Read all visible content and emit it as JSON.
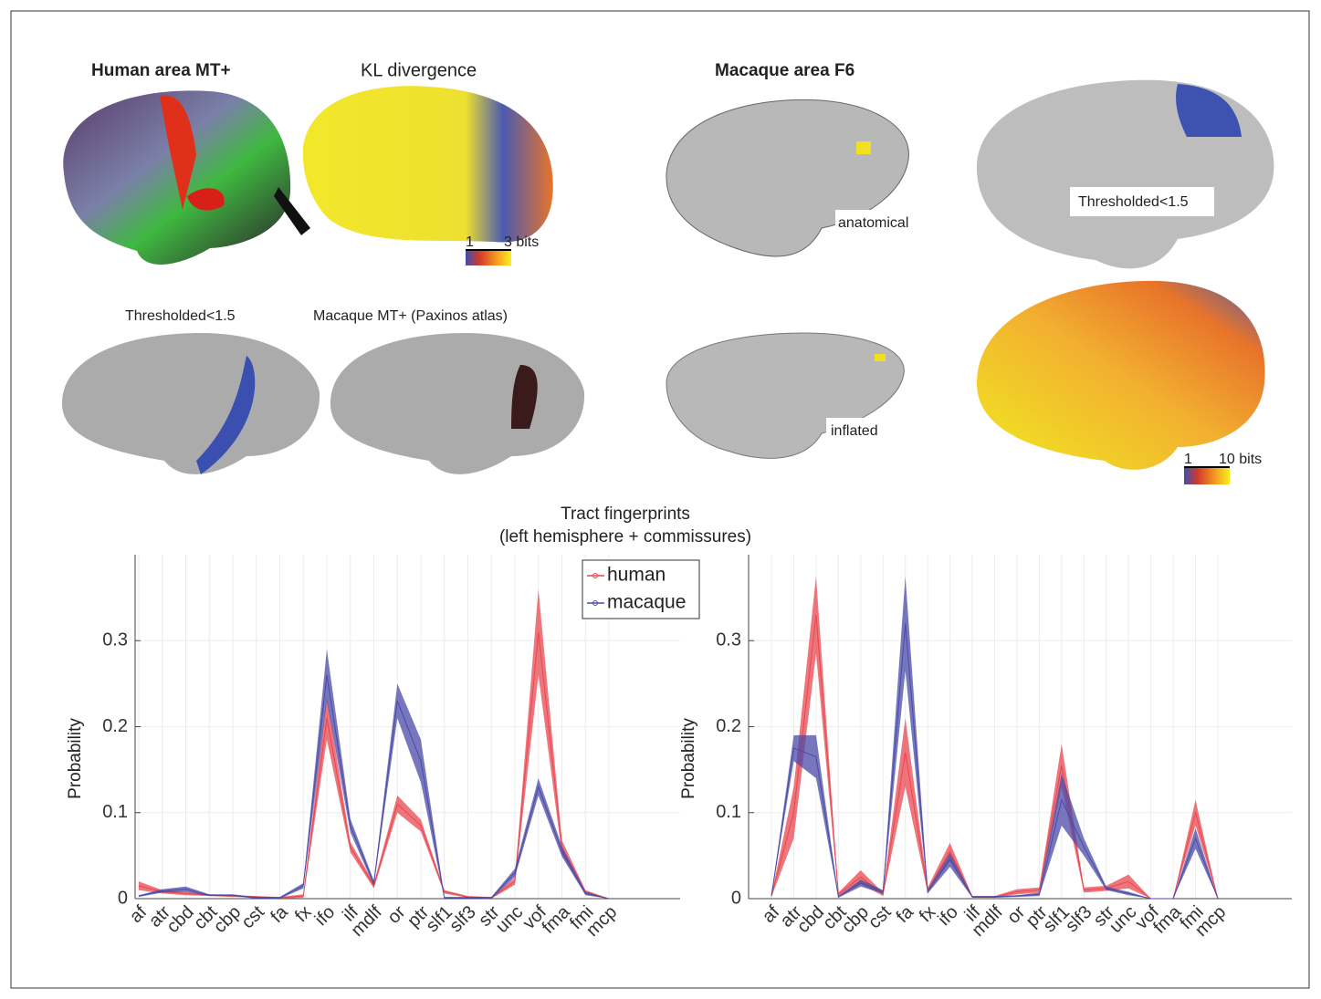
{
  "panels": [
    "Human area MT+",
    "KL divergence",
    "1",
    "3 bits",
    "Macaque area F6",
    "anatomical",
    "Thresholded<1.5",
    "Thresholded<1.5",
    "Macaque MT+ (Paxinos atlas)",
    "inflated",
    "1",
    "10 bits"
  ],
  "chart_data": [
    {
      "type": "line",
      "title": "Tract fingerprints",
      "subtitle": "(left hemisphere + commissures)",
      "ylabel": "Probability",
      "categories": [
        "af",
        "atr",
        "cbd",
        "cbt",
        "cbp",
        "cst",
        "fa",
        "fx",
        "ifo",
        "ilf",
        "mdlf",
        "or",
        "ptr",
        "slf1",
        "slf3",
        "str",
        "unc",
        "vof",
        "fma",
        "fmi",
        "mcp"
      ],
      "ylim": [
        0,
        0.4
      ],
      "yticks": [
        0,
        0.1,
        0.2,
        0.3
      ],
      "grid": true,
      "legend": "top",
      "series": [
        {
          "name": "human",
          "color": "#e8474f",
          "values": [
            0.015,
            0.008,
            0.006,
            0.004,
            0.003,
            0.002,
            0.001,
            0.003,
            0.21,
            0.06,
            0.015,
            0.11,
            0.085,
            0.008,
            0.002,
            0.001,
            0.02,
            0.31,
            0.06,
            0.008,
            0
          ],
          "errors": [
            0.005,
            0.002,
            0.002,
            0.001,
            0.001,
            0.001,
            0.001,
            0.002,
            0.025,
            0.006,
            0.003,
            0.01,
            0.007,
            0.002,
            0.001,
            0.001,
            0.004,
            0.05,
            0.008,
            0.002,
            0
          ]
        },
        {
          "name": "macaque",
          "color": "#4a4aa8",
          "values": [
            0.003,
            0.009,
            0.011,
            0.004,
            0.004,
            0.001,
            0.001,
            0.015,
            0.26,
            0.085,
            0.018,
            0.23,
            0.16,
            0.001,
            0.001,
            0.001,
            0.03,
            0.13,
            0.055,
            0.006,
            0
          ],
          "errors": [
            0.001,
            0.002,
            0.003,
            0.001,
            0.001,
            0.001,
            0.001,
            0.003,
            0.03,
            0.008,
            0.003,
            0.02,
            0.025,
            0.001,
            0.001,
            0.001,
            0.005,
            0.01,
            0.006,
            0.002,
            0
          ]
        }
      ]
    },
    {
      "type": "line",
      "ylabel": "Probability",
      "categories": [
        "af",
        "atr",
        "cbd",
        "cbt",
        "cbp",
        "cst",
        "fa",
        "fx",
        "ifo",
        "ilf",
        "mdlf",
        "or",
        "ptr",
        "slf1",
        "slf3",
        "str",
        "unc",
        "vof",
        "fma",
        "fmi",
        "mcp"
      ],
      "ylim": [
        0,
        0.4
      ],
      "yticks": [
        0,
        0.1,
        0.2,
        0.3
      ],
      "grid": true,
      "series": [
        {
          "color": "#e8474f",
          "values": [
            0.003,
            0.1,
            0.33,
            0.005,
            0.025,
            0.005,
            0.17,
            0.01,
            0.055,
            0.002,
            0.002,
            0.008,
            0.01,
            0.155,
            0.01,
            0.012,
            0.02,
            0,
            0,
            0.1,
            0
          ],
          "errors": [
            0.001,
            0.03,
            0.045,
            0.002,
            0.008,
            0.002,
            0.04,
            0.003,
            0.01,
            0.001,
            0.001,
            0.003,
            0.003,
            0.025,
            0.003,
            0.003,
            0.008,
            0,
            0,
            0.015,
            0
          ]
        },
        {
          "color": "#4a4aa8",
          "values": [
            0.003,
            0.175,
            0.165,
            0.002,
            0.018,
            0.008,
            0.32,
            0.008,
            0.045,
            0.002,
            0.002,
            0.003,
            0.005,
            0.115,
            0.06,
            0.012,
            0.006,
            0,
            0,
            0.07,
            0
          ],
          "errors": [
            0.001,
            0.015,
            0.025,
            0.001,
            0.004,
            0.002,
            0.055,
            0.002,
            0.008,
            0.001,
            0.001,
            0.001,
            0.002,
            0.03,
            0.01,
            0.002,
            0.002,
            0,
            0,
            0.012,
            0
          ]
        }
      ]
    }
  ]
}
